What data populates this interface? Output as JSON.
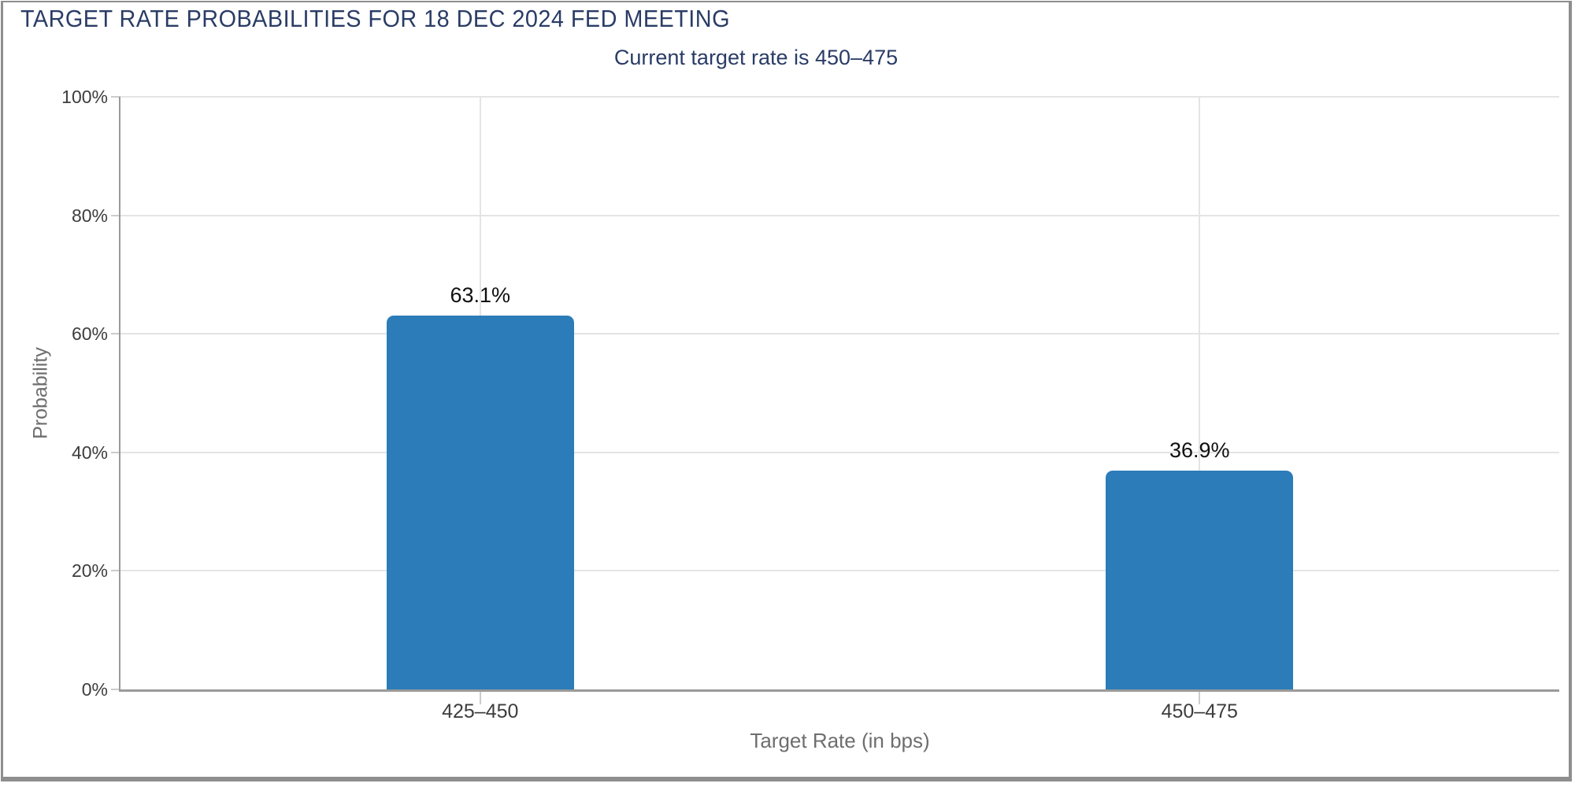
{
  "window": {
    "border_color": "#8e8e8e",
    "background": "#ffffff"
  },
  "chart_data": {
    "type": "bar",
    "title": "TARGET RATE PROBABILITIES FOR 18 DEC 2024 FED MEETING",
    "subtitle": "Current target rate is 450–475",
    "categories": [
      "425–450",
      "450–475"
    ],
    "values": [
      63.1,
      36.9
    ],
    "value_labels": [
      "63.1%",
      "36.9%"
    ],
    "xlabel": "Target Rate (in bps)",
    "ylabel": "Probability",
    "ylim": [
      0,
      100
    ],
    "yticks": [
      0,
      20,
      40,
      60,
      80,
      100
    ],
    "ytick_labels": [
      "0%",
      "20%",
      "40%",
      "60%",
      "80%",
      "100%"
    ],
    "grid": true,
    "vertical_grid_at_category_centers": true,
    "legend": false,
    "colors": {
      "bar": "#2b7cb8",
      "title": "#2a3c66",
      "subtitle": "#2a3c66",
      "grid": "#e4e4e4",
      "axis_line": "#9a9a9a",
      "tick_mark": "#cccccc",
      "tick_label": "#3d3d3d",
      "axis_title": "#6e6e6e",
      "value_label": "#101010"
    }
  }
}
